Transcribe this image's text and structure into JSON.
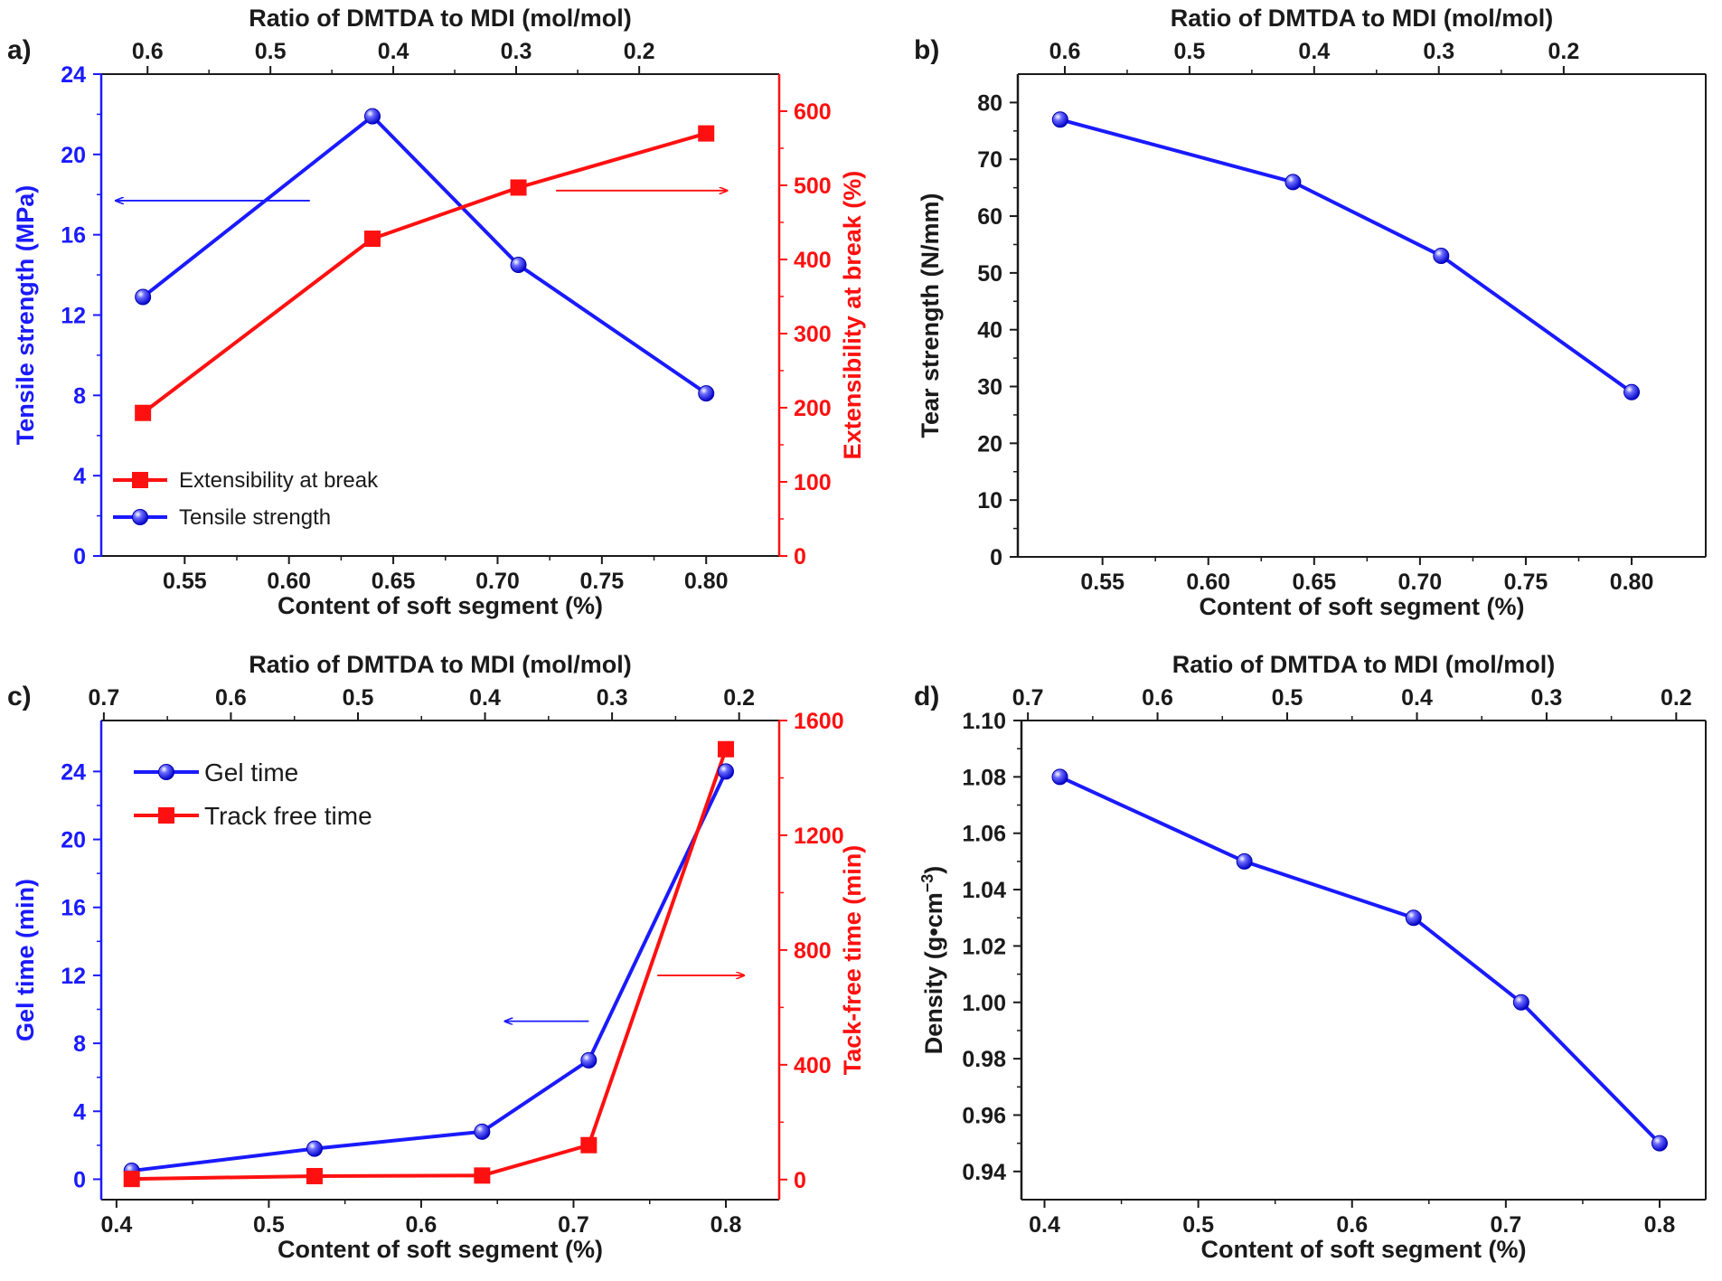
{
  "figure": {
    "colors": {
      "blue": "#1a1aff",
      "red": "#ff1010",
      "black": "#1a1a1a"
    }
  },
  "chart_data": [
    {
      "panel_label": "a)",
      "type": "line",
      "title": "",
      "xlabel": "Content of soft segment (%)",
      "xlim": [
        0.51,
        0.835
      ],
      "xticks": [
        0.55,
        0.6,
        0.65,
        0.7,
        0.75,
        0.8
      ],
      "x_tick_labels": [
        "0.55",
        "0.60",
        "0.65",
        "0.70",
        "0.75",
        "0.80"
      ],
      "top_xlabel": "Ratio of DMTDA to MDI (mol/mol)",
      "top_ticks": [
        0.6,
        0.5,
        0.4,
        0.3,
        0.2
      ],
      "top_tick_labels": [
        "0.6",
        "0.5",
        "0.4",
        "0.3",
        "0.2"
      ],
      "top_tick_x": [
        0.5322,
        0.5911,
        0.65,
        0.7089,
        0.7679
      ],
      "ylabel_left": "Tensile strength (MPa)",
      "ylim_left": [
        0,
        24
      ],
      "yticks_left": [
        0,
        4,
        8,
        12,
        16,
        20,
        24
      ],
      "ylabel_right": "Extensibility at break (%)",
      "ylim_right": [
        0,
        650
      ],
      "yticks_right": [
        0,
        100,
        200,
        300,
        400,
        500,
        600
      ],
      "legend": [
        "Extensibility at break",
        "Tensile strength"
      ],
      "legend_position": "bottom-left",
      "series": [
        {
          "name": "Tensile strength",
          "axis": "left",
          "color": "blue",
          "marker": "sphere",
          "x": [
            0.53,
            0.64,
            0.71,
            0.8
          ],
          "values": [
            12.9,
            21.9,
            14.5,
            8.1
          ]
        },
        {
          "name": "Extensibility at break",
          "axis": "right",
          "color": "red",
          "marker": "square",
          "x": [
            0.53,
            0.64,
            0.71,
            0.8
          ],
          "values": [
            193,
            428,
            497,
            570
          ]
        }
      ],
      "arrows": [
        {
          "color": "blue",
          "direction": "left",
          "x_from": 0.61,
          "x_to": 0.517,
          "axis": "left",
          "y": 17.7
        },
        {
          "color": "red",
          "direction": "right",
          "x_from": 0.728,
          "x_to": 0.81,
          "axis": "left",
          "y": 18.2
        }
      ]
    },
    {
      "panel_label": "b)",
      "type": "line",
      "title": "",
      "xlabel": "Content of soft segment (%)",
      "xlim": [
        0.51,
        0.835
      ],
      "xticks": [
        0.55,
        0.6,
        0.65,
        0.7,
        0.75,
        0.8
      ],
      "x_tick_labels": [
        "0.55",
        "0.60",
        "0.65",
        "0.70",
        "0.75",
        "0.80"
      ],
      "top_xlabel": "Ratio of DMTDA to MDI (mol/mol)",
      "top_ticks": [
        0.6,
        0.5,
        0.4,
        0.3,
        0.2
      ],
      "top_tick_labels": [
        "0.6",
        "0.5",
        "0.4",
        "0.3",
        "0.2"
      ],
      "top_tick_x": [
        0.5322,
        0.5911,
        0.65,
        0.7089,
        0.7679
      ],
      "ylabel_left": "Tear strength (N/mm)",
      "ylim_left": [
        0,
        85
      ],
      "yticks_left": [
        0,
        10,
        20,
        30,
        40,
        50,
        60,
        70,
        80
      ],
      "series": [
        {
          "name": "Tear strength",
          "axis": "left",
          "color": "blue",
          "marker": "sphere",
          "x": [
            0.53,
            0.64,
            0.71,
            0.8
          ],
          "values": [
            77,
            66,
            53,
            29
          ]
        }
      ]
    },
    {
      "panel_label": "c)",
      "type": "line",
      "title": "",
      "xlabel": "Content of soft segment (%)",
      "xlim": [
        0.39,
        0.835
      ],
      "xticks": [
        0.4,
        0.5,
        0.6,
        0.7,
        0.8
      ],
      "x_tick_labels": [
        "0.4",
        "0.5",
        "0.6",
        "0.7",
        "0.8"
      ],
      "top_xlabel": "Ratio of DMTDA to MDI (mol/mol)",
      "top_ticks": [
        0.7,
        0.6,
        0.5,
        0.4,
        0.3,
        0.2
      ],
      "top_tick_labels": [
        "0.7",
        "0.6",
        "0.5",
        "0.4",
        "0.3",
        "0.2"
      ],
      "top_tick_x": [
        0.3917,
        0.4751,
        0.5585,
        0.6419,
        0.7253,
        0.8087
      ],
      "ylabel_left": "Gel time (min)",
      "ylim_left": [
        -1.2,
        27
      ],
      "yticks_left": [
        0,
        4,
        8,
        12,
        16,
        20,
        24
      ],
      "ylabel_right": "Tack-free time (min)",
      "ylim_right": [
        -70,
        1600
      ],
      "yticks_right": [
        0,
        400,
        800,
        1200,
        1600
      ],
      "legend": [
        "Gel time",
        "Track free time"
      ],
      "legend_position": "top-left",
      "series": [
        {
          "name": "Gel time",
          "axis": "left",
          "color": "blue",
          "marker": "sphere",
          "x": [
            0.41,
            0.53,
            0.64,
            0.71,
            0.8
          ],
          "values": [
            0.5,
            1.8,
            2.8,
            7.0,
            24.0
          ]
        },
        {
          "name": "Track free time",
          "axis": "right",
          "color": "red",
          "marker": "square",
          "x": [
            0.41,
            0.53,
            0.64,
            0.71,
            0.8
          ],
          "values": [
            2,
            12,
            14,
            120,
            1500
          ]
        }
      ],
      "arrows": [
        {
          "color": "blue",
          "direction": "left",
          "x_from": 0.71,
          "x_to": 0.655,
          "axis": "left",
          "y": 9.3
        },
        {
          "color": "red",
          "direction": "right",
          "x_from": 0.755,
          "x_to": 0.812,
          "axis": "left",
          "y": 12.0
        }
      ]
    },
    {
      "panel_label": "d)",
      "type": "line",
      "title": "",
      "xlabel": "Content of soft segment (%)",
      "xlim": [
        0.385,
        0.83
      ],
      "xticks": [
        0.4,
        0.5,
        0.6,
        0.7,
        0.8
      ],
      "x_tick_labels": [
        "0.4",
        "0.5",
        "0.6",
        "0.7",
        "0.8"
      ],
      "top_xlabel": "Ratio of DMTDA to MDI (mol/mol)",
      "top_ticks": [
        0.7,
        0.6,
        0.5,
        0.4,
        0.3,
        0.2
      ],
      "top_tick_labels": [
        "0.7",
        "0.6",
        "0.5",
        "0.4",
        "0.3",
        "0.2"
      ],
      "top_tick_x": [
        0.3892,
        0.4735,
        0.5578,
        0.6422,
        0.7265,
        0.8108
      ],
      "ylabel_left": "Density (g•cm",
      "ylabel_left_sup": "−3",
      "ylabel_left_suffix": ")",
      "ylim_left": [
        0.93,
        1.1
      ],
      "yticks_left": [
        0.94,
        0.96,
        0.98,
        1.0,
        1.02,
        1.04,
        1.06,
        1.08,
        1.1
      ],
      "y_tick_labels_left": [
        "0.94",
        "0.96",
        "0.98",
        "1.00",
        "1.02",
        "1.04",
        "1.06",
        "1.08",
        "1.10"
      ],
      "series": [
        {
          "name": "Density",
          "axis": "left",
          "color": "blue",
          "marker": "sphere",
          "x": [
            0.41,
            0.53,
            0.64,
            0.71,
            0.8
          ],
          "values": [
            1.08,
            1.05,
            1.03,
            1.0,
            0.95
          ]
        }
      ]
    }
  ]
}
